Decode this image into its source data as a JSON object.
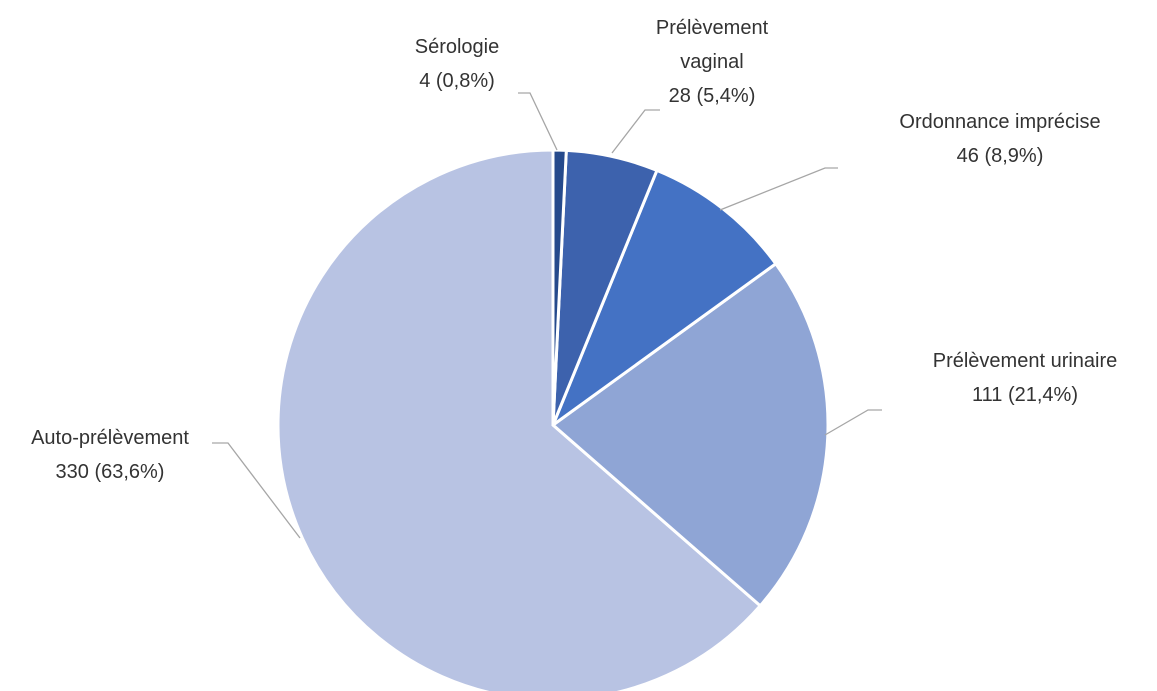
{
  "chart_data": {
    "type": "pie",
    "categories": [
      "Sérologie",
      "Prélèvement vaginal",
      "Ordonnance imprécise",
      "Prélèvement urinaire",
      "Auto-prélèvement"
    ],
    "values": [
      4,
      28,
      46,
      111,
      330
    ],
    "value_labels": [
      "4 (0,8%)",
      "28 (5,4%)",
      "46 (8,9%)",
      "111 (21,4%)",
      "330 (63,6%)"
    ],
    "colors": [
      "#264a8c",
      "#3d62ad",
      "#4472c4",
      "#8fa5d5",
      "#b8c3e3"
    ]
  }
}
